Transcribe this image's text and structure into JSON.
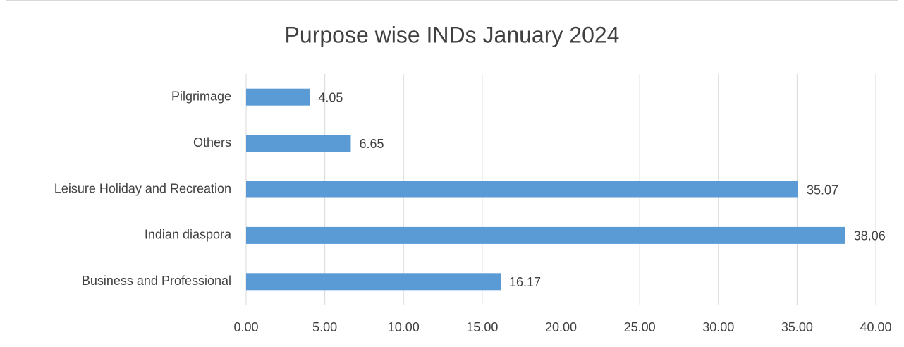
{
  "chart_data": {
    "type": "hbar",
    "title": "Purpose wise INDs January 2024",
    "categories": [
      "Pilgrimage",
      "Others",
      "Leisure Holiday and Recreation",
      "Indian diaspora",
      "Business and Professional"
    ],
    "values": [
      4.05,
      6.65,
      35.07,
      38.06,
      16.17
    ],
    "color": "#5b9bd5",
    "xlim": [
      0,
      40
    ],
    "xticks": [
      {
        "value": 0,
        "label": "0.00"
      },
      {
        "value": 5,
        "label": "5.00"
      },
      {
        "value": 10,
        "label": "10.00"
      },
      {
        "value": 15,
        "label": "15.00"
      },
      {
        "value": 20,
        "label": "20.00"
      },
      {
        "value": 25,
        "label": "25.00"
      },
      {
        "value": 30,
        "label": "30.00"
      },
      {
        "value": 35,
        "label": "35.00"
      },
      {
        "value": 40,
        "label": "40.00"
      }
    ],
    "grid": true
  }
}
